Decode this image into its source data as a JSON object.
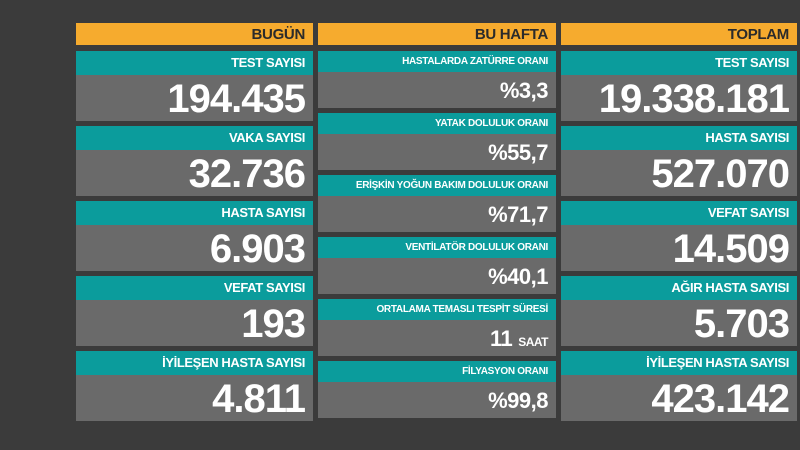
{
  "columns": {
    "today": {
      "title": "BUGÜN",
      "items": [
        {
          "label": "TEST SAYISI",
          "value": "194.435"
        },
        {
          "label": "VAKA SAYISI",
          "value": "32.736"
        },
        {
          "label": "HASTA SAYISI",
          "value": "6.903"
        },
        {
          "label": "VEFAT SAYISI",
          "value": "193"
        },
        {
          "label": "İYİLEŞEN HASTA SAYISI",
          "value": "4.811"
        }
      ]
    },
    "this_week": {
      "title": "BU HAFTA",
      "items": [
        {
          "label": "HASTALARDA ZATÜRRE ORANI",
          "value": "%3,3",
          "unit": ""
        },
        {
          "label": "YATAK DOLULUK ORANI",
          "value": "%55,7",
          "unit": ""
        },
        {
          "label": "ERİŞKİN YOĞUN BAKIM DOLULUK ORANI",
          "value": "%71,7",
          "unit": ""
        },
        {
          "label": "VENTİLATÖR DOLULUK ORANI",
          "value": "%40,1",
          "unit": ""
        },
        {
          "label": "ORTALAMA TEMASLI TESPİT SÜRESİ",
          "value": "11",
          "unit": "SAAT"
        },
        {
          "label": "FİLYASYON ORANI",
          "value": "%99,8",
          "unit": ""
        }
      ]
    },
    "total": {
      "title": "TOPLAM",
      "items": [
        {
          "label": "TEST SAYISI",
          "value": "19.338.181"
        },
        {
          "label": "HASTA SAYISI",
          "value": "527.070"
        },
        {
          "label": "VEFAT SAYISI",
          "value": "14.509"
        },
        {
          "label": "AĞIR HASTA SAYISI",
          "value": "5.703"
        },
        {
          "label": "İYİLEŞEN HASTA SAYISI",
          "value": "423.142"
        }
      ]
    }
  },
  "colors": {
    "background": "#3b3b3b",
    "header": "#f6ab2e",
    "label": "#0b9c9c",
    "value": "#6a6a6a"
  }
}
